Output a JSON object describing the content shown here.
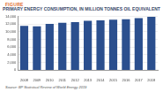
{
  "chart_data": {
    "type": "bar",
    "figure_label": "FIGURE",
    "title": "PRIMARY ENERGY CONSUMPTION, IN MILLION TONNES OIL EQUIVALENT",
    "source": "Source: BP Statistical Review of World Energy 2019",
    "categories": [
      "2008",
      "2009",
      "2010",
      "2011",
      "2012",
      "2013",
      "2014",
      "2015",
      "2016",
      "2017",
      "2018"
    ],
    "values": [
      11500,
      11400,
      12000,
      12300,
      12500,
      12800,
      12950,
      13100,
      13250,
      13500,
      13850
    ],
    "color": "#2b4f8e",
    "ylim": [
      0,
      14000
    ],
    "yticks": [
      0,
      {
        "value": 2000,
        "label": "2,000"
      },
      {
        "value": 4000,
        "label": "4,000"
      },
      {
        "value": 6000,
        "label": "6,000"
      },
      {
        "value": 8000,
        "label": "8,000"
      },
      {
        "value": 10000,
        "label": "10,000"
      },
      {
        "value": 12000,
        "label": "12,000"
      },
      {
        "value": 14000,
        "label": "14,000"
      }
    ],
    "grid": true
  }
}
